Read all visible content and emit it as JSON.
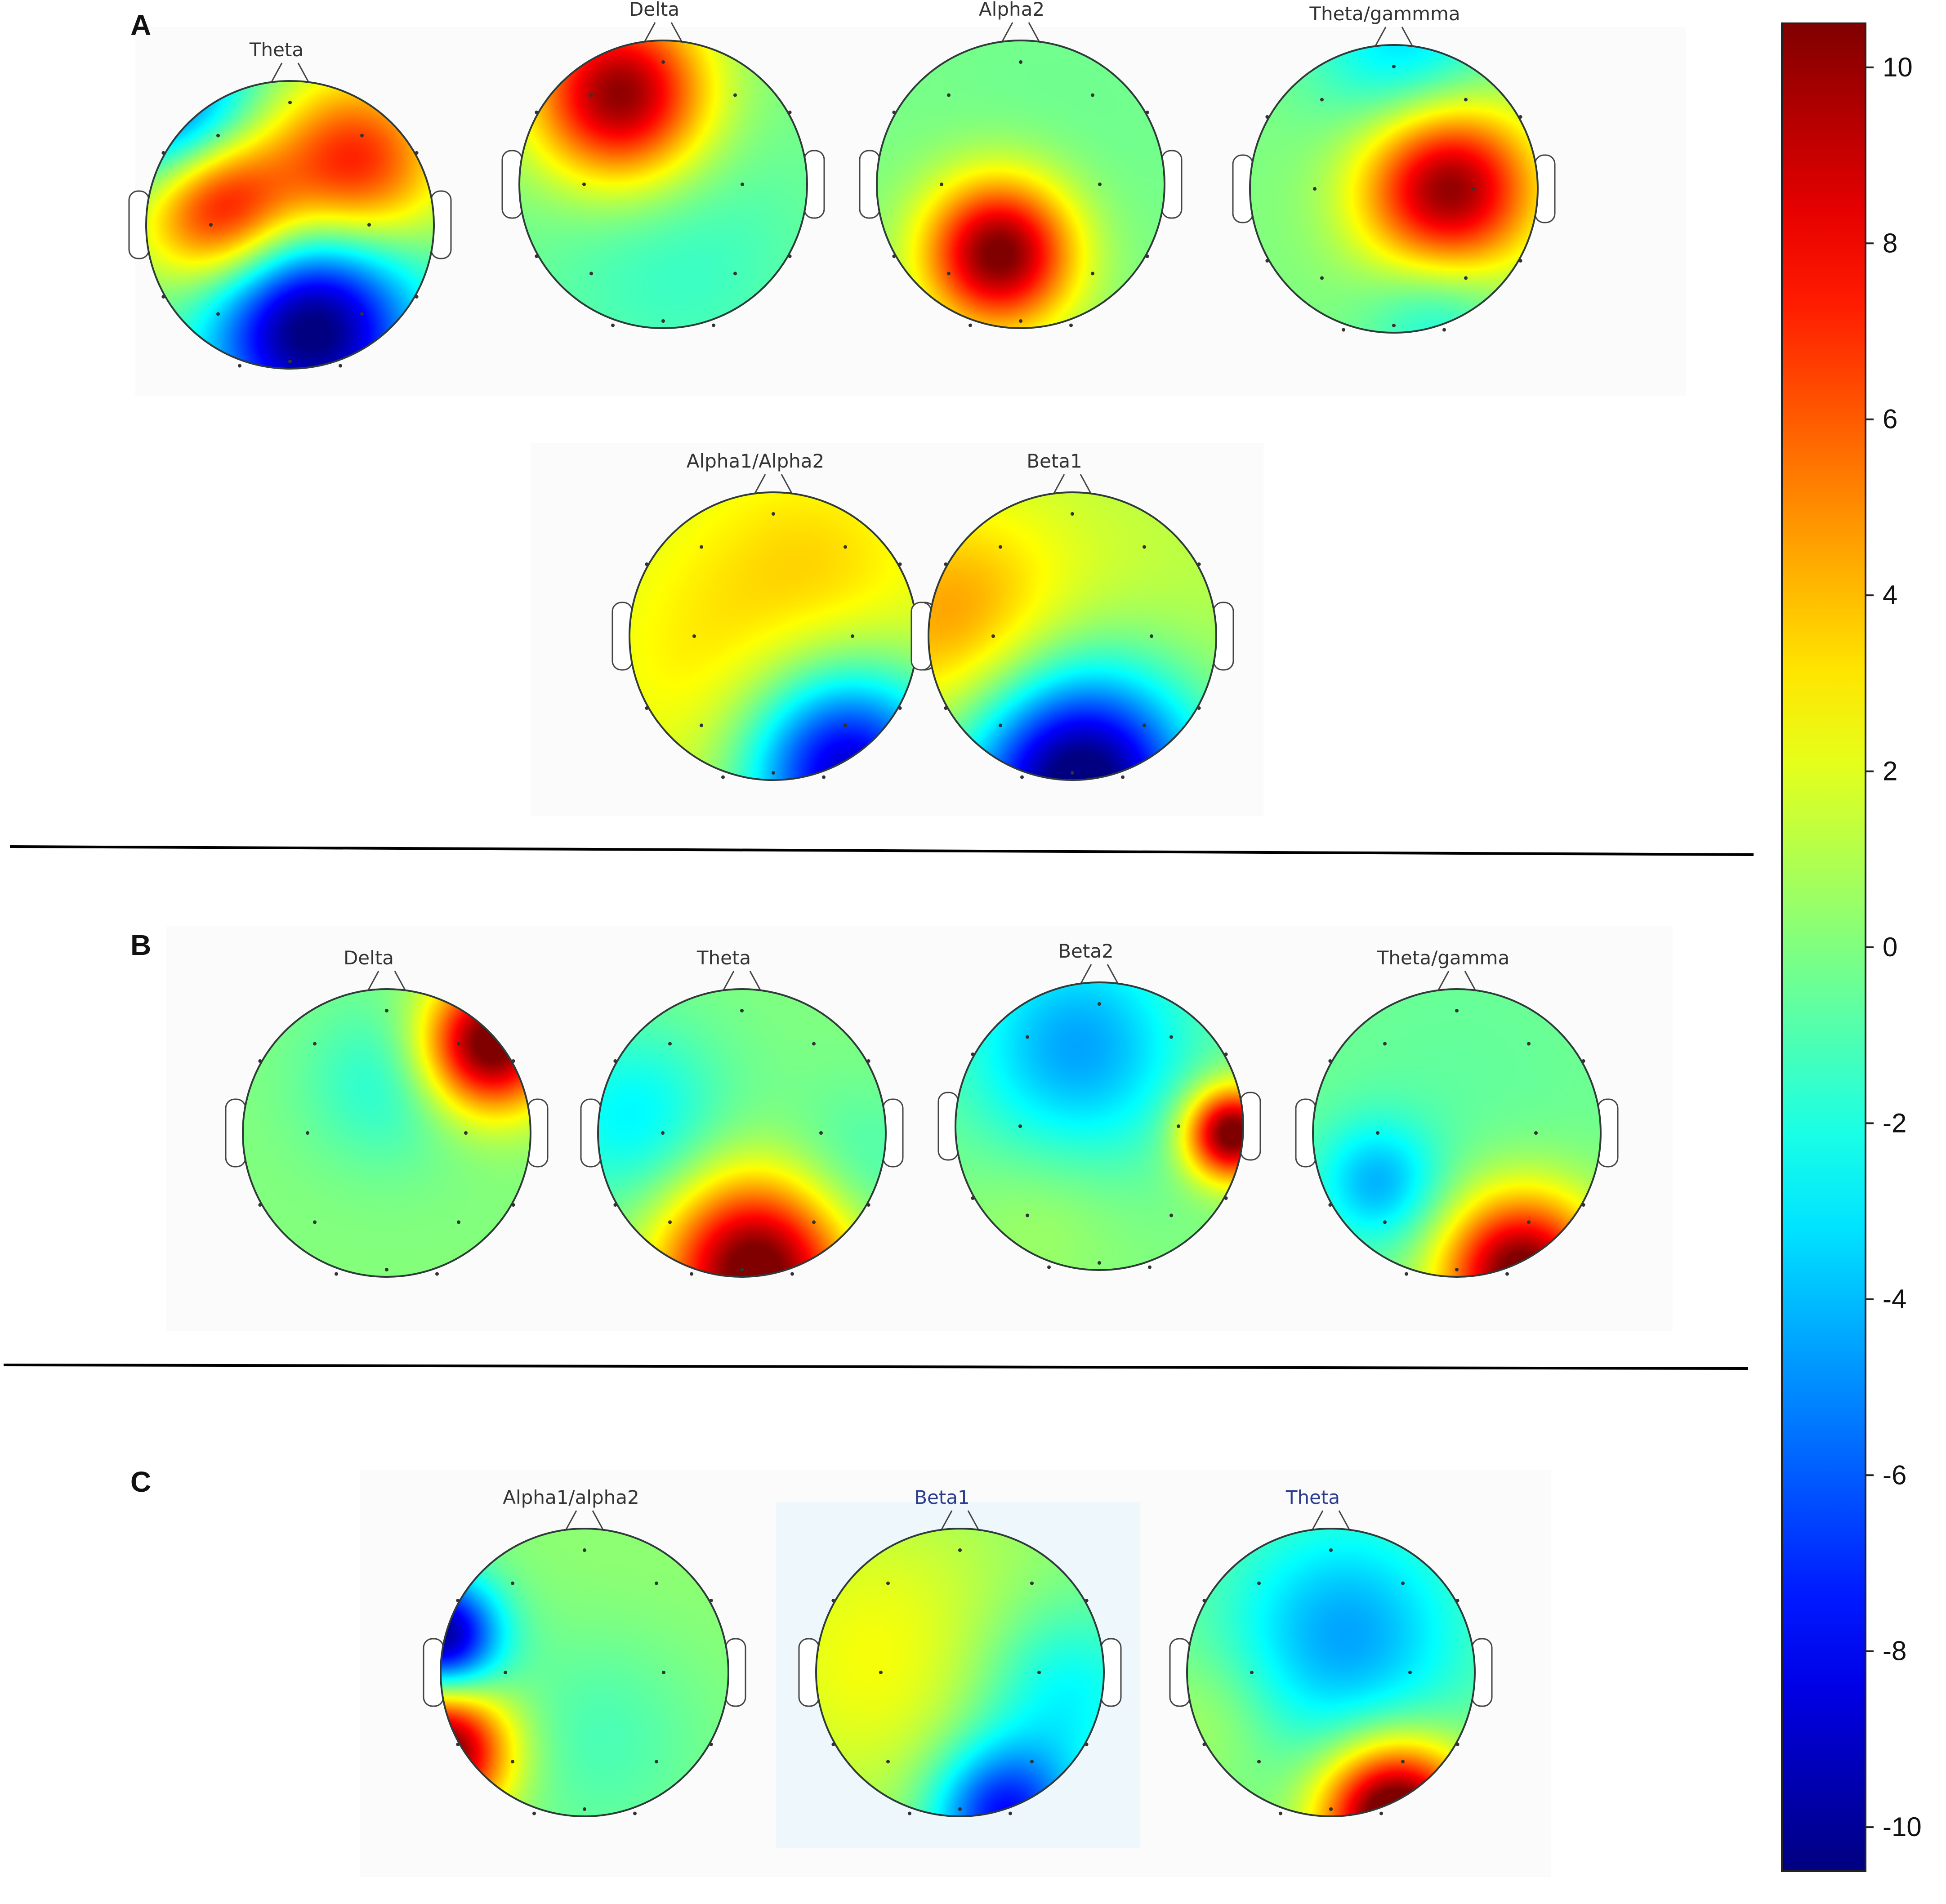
{
  "panels": [
    {
      "letter": "A",
      "maps": [
        {
          "title": "Theta",
          "blobs": [
            [
              -0.5,
              -0.15,
              0.38,
              9.5
            ],
            [
              0.45,
              -0.42,
              0.42,
              7.5
            ],
            [
              0.15,
              0.72,
              0.5,
              -11
            ],
            [
              -0.78,
              -0.7,
              0.4,
              -7
            ]
          ]
        },
        {
          "title": "Delta",
          "blobs": [
            [
              -0.3,
              -0.62,
              0.42,
              10.5
            ],
            [
              0.1,
              0.5,
              0.7,
              -1.5
            ]
          ]
        },
        {
          "title": "Alpha2",
          "blobs": [
            [
              -0.15,
              0.48,
              0.36,
              11
            ],
            [
              0.2,
              -0.3,
              0.8,
              -0.4
            ]
          ]
        },
        {
          "title": "Theta/gammma",
          "blobs": [
            [
              0.38,
              0.0,
              0.42,
              10.5
            ],
            [
              0.1,
              -0.95,
              0.45,
              -3.5
            ],
            [
              0.3,
              0.85,
              0.35,
              -2.5
            ]
          ]
        },
        {
          "title": "Alpha1/Alpha2",
          "blobs": [
            [
              0,
              0,
              1.4,
              2.8
            ],
            [
              0.3,
              -0.5,
              0.5,
              1.0
            ],
            [
              0.5,
              0.92,
              0.5,
              -11
            ],
            [
              -0.4,
              0.3,
              0.5,
              0.6
            ]
          ]
        },
        {
          "title": "Beta1",
          "blobs": [
            [
              -0.85,
              -0.1,
              0.55,
              3.5
            ],
            [
              0,
              -0.2,
              1.3,
              1.6
            ],
            [
              0.05,
              1.0,
              0.55,
              -12.5
            ]
          ]
        }
      ]
    },
    {
      "letter": "B",
      "maps": [
        {
          "title": "Delta",
          "blobs": [
            [
              0.72,
              -0.62,
              0.32,
              11.5
            ],
            [
              0.0,
              -0.35,
              0.4,
              -2.0
            ],
            [
              0,
              0.3,
              1.0,
              0.1
            ]
          ]
        },
        {
          "title": "Theta",
          "blobs": [
            [
              0.1,
              0.95,
              0.45,
              11.5
            ],
            [
              -0.75,
              -0.1,
              0.45,
              -2.8
            ],
            [
              0.75,
              0.3,
              0.4,
              -1.5
            ]
          ]
        },
        {
          "title": "Beta2",
          "blobs": [
            [
              0.92,
              0.05,
              0.22,
              11.5
            ],
            [
              -0.15,
              -0.55,
              0.55,
              -4.5
            ],
            [
              -0.4,
              0.6,
              0.4,
              0.8
            ]
          ]
        },
        {
          "title": "Theta/gamma",
          "blobs": [
            [
              0.45,
              0.98,
              0.38,
              11.5
            ],
            [
              -0.55,
              0.35,
              0.3,
              -3.8
            ],
            [
              0,
              -0.3,
              1.0,
              -0.6
            ]
          ]
        }
      ]
    },
    {
      "letter": "C",
      "maps": [
        {
          "title": "Alpha1/alpha2",
          "blobs": [
            [
              -1.0,
              0.55,
              0.32,
              11.5
            ],
            [
              -1.0,
              -0.25,
              0.28,
              -10.5
            ],
            [
              0.1,
              0.4,
              0.55,
              -1.5
            ],
            [
              0.2,
              -0.2,
              0.9,
              0.5
            ]
          ]
        },
        {
          "title": "Beta1",
          "blobs": [
            [
              -0.55,
              -0.1,
              0.8,
              2.5
            ],
            [
              0.7,
              0.15,
              0.45,
              -3.2
            ],
            [
              0.3,
              1.0,
              0.35,
              -8.0
            ]
          ]
        },
        {
          "title": "Theta",
          "blobs": [
            [
              0.1,
              -0.25,
              0.6,
              -4.5
            ],
            [
              0.45,
              1.0,
              0.35,
              13.0
            ],
            [
              -0.8,
              0.3,
              0.35,
              1.2
            ]
          ]
        }
      ]
    }
  ],
  "colorbar": {
    "ticks": [
      "10",
      "8",
      "6",
      "4",
      "2",
      "0",
      "-2",
      "-4",
      "-6",
      "-8",
      "-10"
    ],
    "min": -10.5,
    "max": 10.5
  }
}
